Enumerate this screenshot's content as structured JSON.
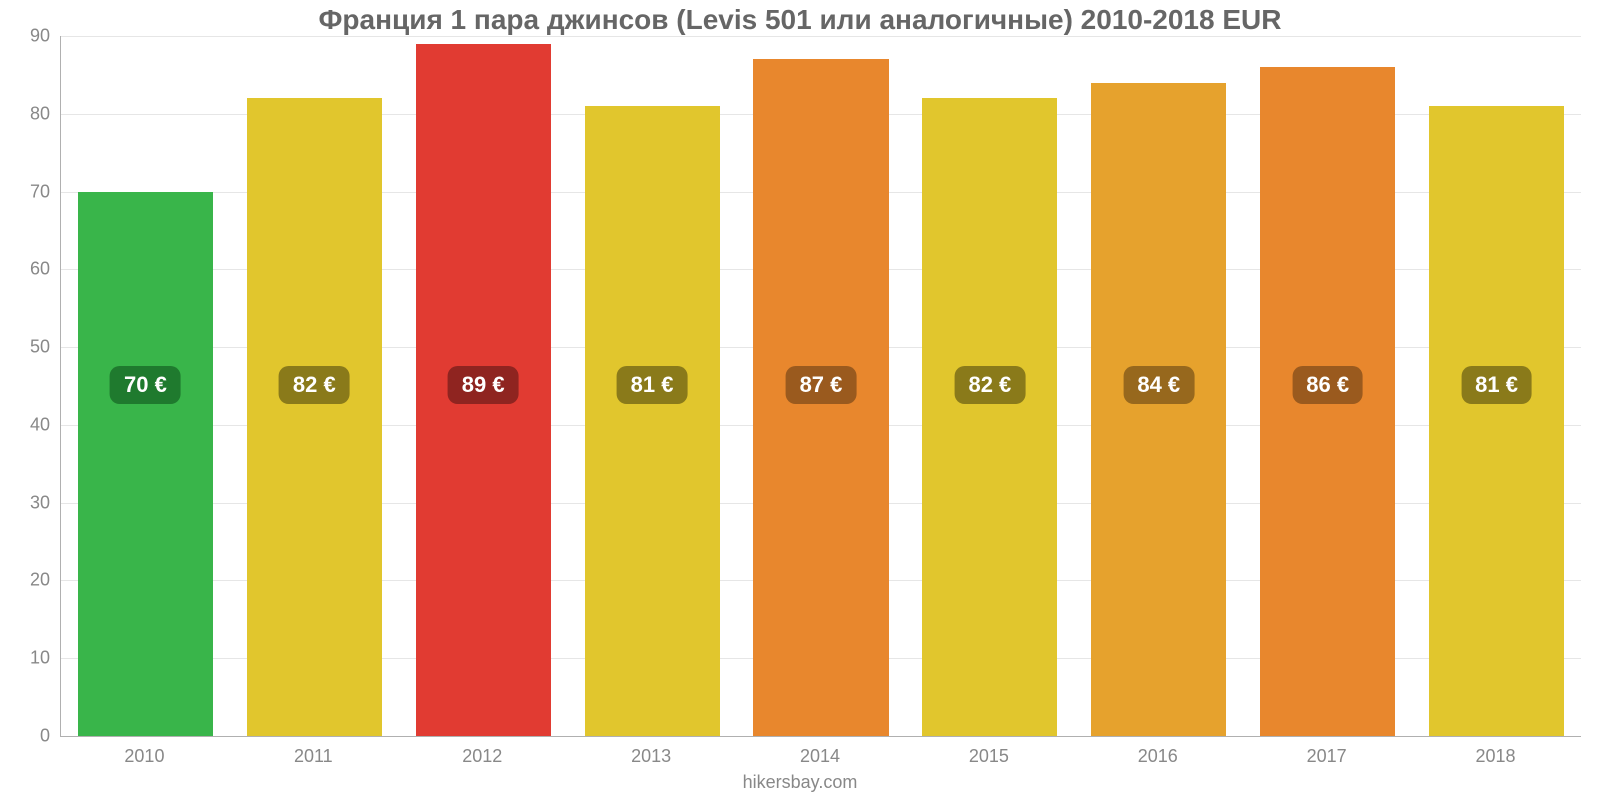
{
  "chart": {
    "type": "bar",
    "title": "Франция 1 пара джинсов (Levis 501 или аналогичные) 2010-2018 EUR",
    "title_color": "#666666",
    "title_fontsize": 28,
    "caption": "hikersbay.com",
    "caption_fontsize": 18,
    "caption_color": "#888888",
    "background_color": "#ffffff",
    "grid_color": "#e6e6e6",
    "axis_color": "#b0b0b0",
    "tick_color": "#888888",
    "tick_fontsize": 18,
    "ylim": [
      0,
      90
    ],
    "ytick_step": 10,
    "yticks": [
      0,
      10,
      20,
      30,
      40,
      50,
      60,
      70,
      80,
      90
    ],
    "bar_width": 0.8,
    "value_label_fontsize": 22,
    "value_label_radius": 10,
    "categories": [
      "2010",
      "2011",
      "2012",
      "2013",
      "2014",
      "2015",
      "2016",
      "2017",
      "2018"
    ],
    "values": [
      70,
      82,
      89,
      81,
      87,
      82,
      84,
      86,
      81
    ],
    "value_labels": [
      "70 €",
      "82 €",
      "89 €",
      "81 €",
      "87 €",
      "82 €",
      "84 €",
      "86 €",
      "81 €"
    ],
    "bar_colors": [
      "#39b54a",
      "#e1c62d",
      "#e13b32",
      "#e1c62d",
      "#e8872d",
      "#e1c62d",
      "#e6a22d",
      "#e8872d",
      "#e1c62d"
    ],
    "label_bg_colors": [
      "#1f7a2e",
      "#8a7a1a",
      "#8f2420",
      "#8a7a1a",
      "#9a5a1e",
      "#8a7a1a",
      "#97681d",
      "#9a5a1e",
      "#8a7a1a"
    ],
    "label_center_value": 45
  }
}
